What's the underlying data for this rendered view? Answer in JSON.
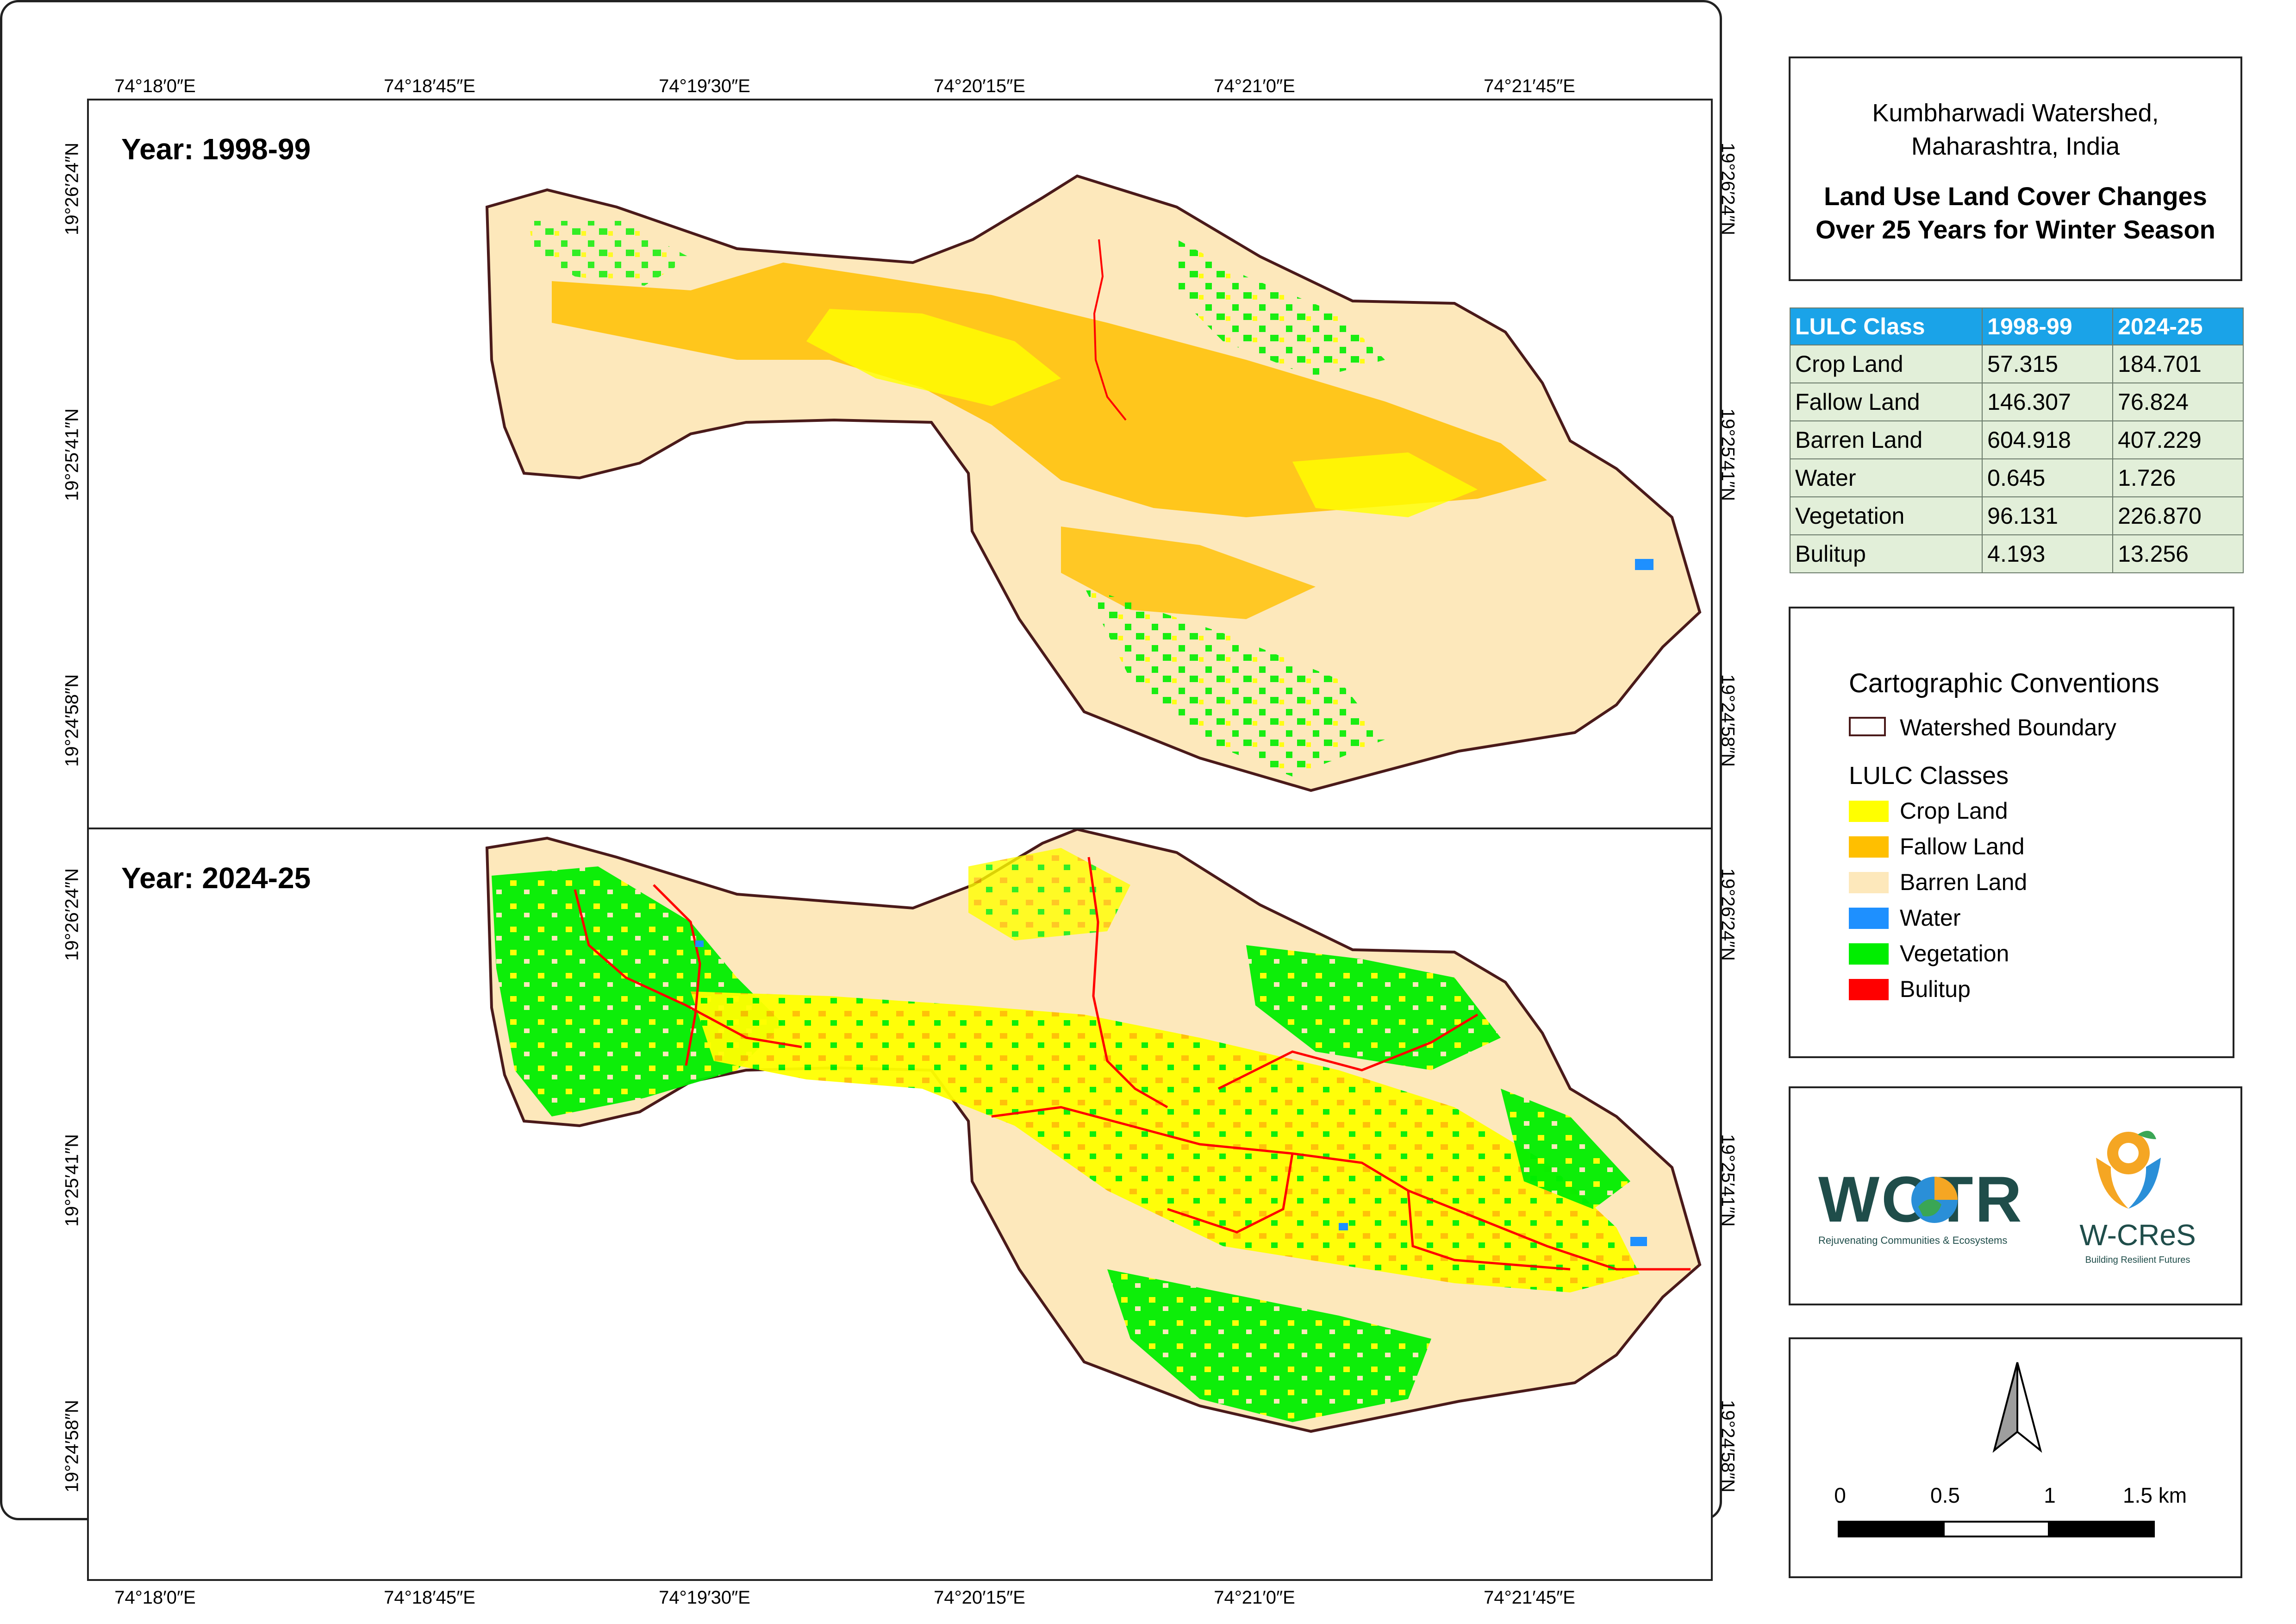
{
  "map_top": {
    "year_label": "Year: 1998-99",
    "x_ticks": [
      "74°18′0″E",
      "74°18′45″E",
      "74°19′30″E",
      "74°20′15″E",
      "74°21′0″E",
      "74°21′45″E"
    ],
    "y_ticks": [
      "19°26′24″N",
      "19°25′41″N",
      "19°24′58″N"
    ]
  },
  "map_bottom": {
    "year_label": "Year: 2024-25",
    "x_ticks": [
      "74°18′0″E",
      "74°18′45″E",
      "74°19′30″E",
      "74°20′15″E",
      "74°21′0″E",
      "74°21′45″E"
    ],
    "y_ticks": [
      "19°26′24″N",
      "19°25′41″N",
      "19°24′58″N"
    ]
  },
  "title": {
    "place_line1": "Kumbharwadi Watershed,",
    "place_line2": "Maharashtra, India",
    "main_line1": "Land Use Land Cover Changes",
    "main_line2": "Over 25 Years for Winter Season"
  },
  "stats_table": {
    "headers": [
      "LULC Class",
      "1998-99",
      "2024-25"
    ],
    "rows": [
      [
        "Crop Land",
        "57.315",
        "184.701"
      ],
      [
        "Fallow Land",
        "146.307",
        "76.824"
      ],
      [
        "Barren Land",
        "604.918",
        "407.229"
      ],
      [
        "Water",
        "0.645",
        "1.726"
      ],
      [
        "Vegetation",
        "96.131",
        "226.870"
      ],
      [
        "Bulitup",
        "4.193",
        "13.256"
      ]
    ]
  },
  "legend": {
    "title": "Cartographic Conventions",
    "boundary_label": "Watershed Boundary",
    "classes_title": "LULC Classes",
    "classes": [
      {
        "label": "Crop Land",
        "color": "#ffff00"
      },
      {
        "label": "Fallow Land",
        "color": "#ffbf00"
      },
      {
        "label": "Barren Land",
        "color": "#fde8bb"
      },
      {
        "label": "Water",
        "color": "#1e90ff"
      },
      {
        "label": "Vegetation",
        "color": "#00ee00"
      },
      {
        "label": "Bulitup",
        "color": "#ff0000"
      }
    ],
    "boundary_color": "#4a1a1a"
  },
  "logos": {
    "wotr_name": "WOTR",
    "wotr_tagline": "Rejuvenating Communities & Ecosystems",
    "wcres_name": "W-CReS",
    "wcres_tagline": "Building Resilient Futures"
  },
  "scale_bar": {
    "labels": [
      "0",
      "0.5",
      "1",
      "1.5 km"
    ]
  }
}
